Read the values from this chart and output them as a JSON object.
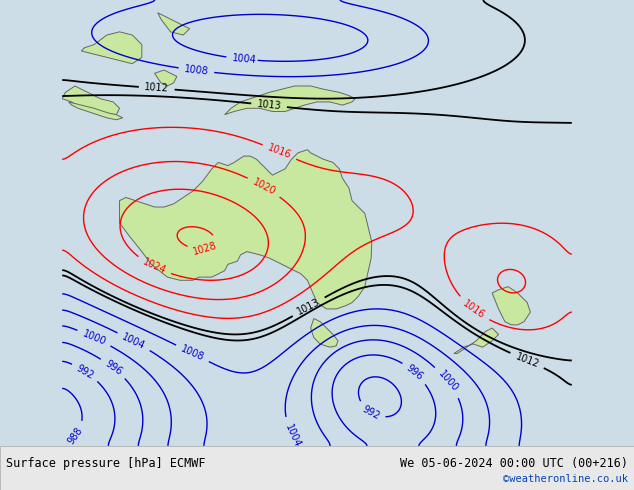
{
  "title_left": "Surface pressure [hPa] ECMWF",
  "title_right": "We 05-06-2024 00:00 UTC (00+216)",
  "watermark": "©weatheronline.co.uk",
  "bg_color": "#ccdde8",
  "land_color": "#c8e8a0",
  "fig_width": 6.34,
  "fig_height": 4.9,
  "dpi": 100,
  "xlim": [
    105,
    185
  ],
  "ylim": [
    -60,
    10
  ],
  "title_fontsize": 8.5,
  "watermark_color": "#0044bb"
}
